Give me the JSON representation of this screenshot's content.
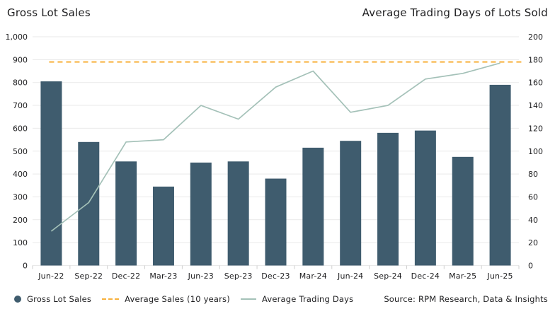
{
  "header": {
    "left_title": "Gross Lot Sales",
    "right_title": "Average Trading Days of Lots Sold"
  },
  "legend": {
    "items": [
      {
        "label": "Gross Lot Sales",
        "marker": "circle"
      },
      {
        "label": "Average Sales (10 years)",
        "marker": "dashed-line"
      },
      {
        "label": "Average Trading Days",
        "marker": "line"
      }
    ]
  },
  "footer": {
    "source": "Source: RPM Research, Data & Insights"
  },
  "colors": {
    "bar": "#3f5c6e",
    "average_line": "#f8b13d",
    "trading_days_line": "#a4c1b8",
    "grid": "#e9e9e9",
    "tick": "#cfcfcf",
    "text": "#1d1d1f"
  },
  "chart_data": {
    "type": "bar",
    "title": "Gross Lot Sales / Average Trading Days of Lots Sold",
    "categories": [
      "Jun-22",
      "Sep-22",
      "Dec-22",
      "Mar-23",
      "Jun-23",
      "Sep-23",
      "Dec-23",
      "Mar-24",
      "Jun-24",
      "Sep-24",
      "Dec-24",
      "Mar-25",
      "Jun-25"
    ],
    "series": [
      {
        "name": "Gross Lot Sales",
        "type": "bar",
        "axis": "left",
        "values": [
          805,
          540,
          455,
          345,
          450,
          455,
          380,
          515,
          545,
          580,
          590,
          475,
          790
        ]
      },
      {
        "name": "Average Sales (10 years)",
        "type": "dashed-line",
        "axis": "left",
        "value": 890
      },
      {
        "name": "Average Trading Days",
        "type": "line",
        "axis": "right",
        "values": [
          30,
          55,
          108,
          110,
          140,
          128,
          156,
          170,
          134,
          140,
          163,
          168,
          177
        ]
      }
    ],
    "left_axis": {
      "label": "Gross Lot Sales",
      "min": 0,
      "max": 1000,
      "tick_values": [
        0,
        100,
        200,
        300,
        400,
        500,
        600,
        700,
        800,
        900,
        1000
      ],
      "tick_labels": [
        "0",
        "100",
        "200",
        "300",
        "400",
        "500",
        "600",
        "700",
        "800",
        "900",
        "1,000"
      ]
    },
    "right_axis": {
      "label": "Average Trading Days of Lots Sold",
      "min": 0,
      "max": 200,
      "tick_values": [
        0,
        20,
        40,
        60,
        80,
        100,
        120,
        140,
        160,
        180,
        200
      ],
      "tick_labels": [
        "0",
        "20",
        "40",
        "60",
        "80",
        "100",
        "120",
        "140",
        "160",
        "180",
        "200"
      ]
    },
    "grid": "horizontal",
    "legend_position": "bottom-left"
  }
}
